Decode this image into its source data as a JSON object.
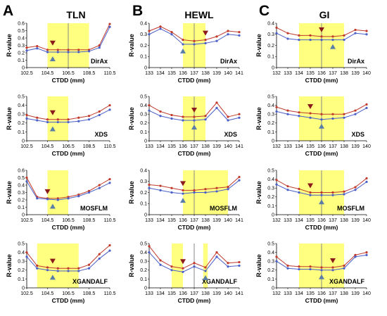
{
  "panel_letters": [
    "A",
    "B",
    "C"
  ],
  "column_titles": [
    "TLN",
    "HEWL",
    "GI"
  ],
  "chart_data": [
    {
      "type": "line",
      "column": "TLN",
      "program": "DirAx",
      "x": [
        102.5,
        103.5,
        104.5,
        105.5,
        106.5,
        107.5,
        108.5,
        109.5,
        110.5
      ],
      "xticks": [
        "102.5",
        "104.5",
        "106.5",
        "108.5",
        "110.5"
      ],
      "xlim": [
        102.5,
        110.5
      ],
      "ylim": [
        0,
        0.6
      ],
      "yticks": [
        "0",
        "0.1",
        "0.2",
        "0.3",
        "0.4",
        "0.5",
        "0.6"
      ],
      "xlabel": "CTDD (mm)",
      "ylabel": "R-value",
      "shade": [
        [
          104.5,
          108.5
        ]
      ],
      "vline": 106.5,
      "down_marker": 105,
      "up_marker": 105,
      "series": [
        {
          "values": [
            0.27,
            0.29,
            0.24,
            0.24,
            0.24,
            0.24,
            0.24,
            0.3,
            0.59
          ],
          "color": "#c0392b"
        },
        {
          "values": [
            0.23,
            0.26,
            0.21,
            0.21,
            0.21,
            0.21,
            0.22,
            0.27,
            0.55
          ],
          "color": "#4a5fc8"
        }
      ]
    },
    {
      "type": "line",
      "column": "HEWL",
      "program": "DirAx",
      "x": [
        133,
        134,
        135,
        136,
        137,
        138,
        139,
        140,
        141
      ],
      "xticks": [
        "133",
        "134",
        "135",
        "136",
        "137",
        "138",
        "139",
        "140",
        "141"
      ],
      "xlim": [
        133,
        141
      ],
      "ylim": [
        0,
        0.4
      ],
      "yticks": [
        "0",
        "0.1",
        "0.2",
        "0.3",
        "0.4"
      ],
      "xlabel": "CTDD (mm)",
      "ylabel": "R-value",
      "shade": [
        [
          136,
          138
        ]
      ],
      "vline": 137,
      "down_marker": 138,
      "up_marker": 136,
      "series": [
        {
          "values": [
            0.33,
            0.37,
            0.32,
            0.25,
            0.24,
            0.25,
            0.28,
            0.33,
            0.32
          ],
          "color": "#c0392b"
        },
        {
          "values": [
            0.3,
            0.35,
            0.3,
            0.21,
            0.21,
            0.22,
            0.24,
            0.3,
            0.29
          ],
          "color": "#4a5fc8"
        }
      ]
    },
    {
      "type": "line",
      "column": "GI",
      "program": "DirAx",
      "x": [
        132,
        133,
        134,
        135,
        136,
        137,
        138,
        139,
        140
      ],
      "xticks": [
        "132",
        "133",
        "134",
        "135",
        "136",
        "137",
        "138",
        "139",
        "140"
      ],
      "xlim": [
        132,
        140
      ],
      "ylim": [
        0,
        0.4
      ],
      "yticks": [
        "0",
        "0.1",
        "0.2",
        "0.3",
        "0.4"
      ],
      "xlabel": "CTDD (mm)",
      "ylabel": "R-value",
      "shade": [
        [
          134,
          138
        ]
      ],
      "vline": 136,
      "down_marker": 136,
      "up_marker": 137,
      "series": [
        {
          "values": [
            0.36,
            0.31,
            0.29,
            0.29,
            0.28,
            0.28,
            0.29,
            0.34,
            0.33
          ],
          "color": "#c0392b"
        },
        {
          "values": [
            0.31,
            0.26,
            0.25,
            0.25,
            0.25,
            0.25,
            0.25,
            0.31,
            0.3
          ],
          "color": "#4a5fc8"
        }
      ]
    },
    {
      "type": "line",
      "column": "TLN",
      "program": "XDS",
      "x": [
        102.5,
        103.5,
        104.5,
        105.5,
        106.5,
        107.5,
        108.5,
        109.5,
        110.5
      ],
      "xticks": [
        "102.5",
        "104.5",
        "106.5",
        "108.5",
        "110.5"
      ],
      "xlim": [
        102.5,
        110.5
      ],
      "ylim": [
        0,
        0.5
      ],
      "yticks": [
        "0",
        "0.1",
        "0.2",
        "0.3",
        "0.4",
        "0.5"
      ],
      "xlabel": "CTDD (mm)",
      "ylabel": "R-value",
      "shade": [
        [
          104.5,
          106.5
        ]
      ],
      "vline": null,
      "down_marker": 105,
      "up_marker": 105,
      "series": [
        {
          "values": [
            0.29,
            0.26,
            0.24,
            0.24,
            0.24,
            0.26,
            0.28,
            0.33,
            0.4
          ],
          "color": "#c0392b"
        },
        {
          "values": [
            0.25,
            0.23,
            0.21,
            0.21,
            0.21,
            0.22,
            0.24,
            0.29,
            0.35
          ],
          "color": "#4a5fc8"
        }
      ]
    },
    {
      "type": "line",
      "column": "HEWL",
      "program": "XDS",
      "x": [
        133,
        134,
        135,
        136,
        137,
        138,
        139,
        140,
        141
      ],
      "xticks": [
        "133",
        "134",
        "135",
        "136",
        "137",
        "138",
        "139",
        "140",
        "141"
      ],
      "xlim": [
        133,
        141
      ],
      "ylim": [
        0,
        0.5
      ],
      "yticks": [
        "0",
        "0.1",
        "0.2",
        "0.3",
        "0.4",
        "0.5"
      ],
      "xlabel": "CTDD (mm)",
      "ylabel": "R-value",
      "shade": [
        [
          136,
          138
        ]
      ],
      "vline": 137,
      "down_marker": 137,
      "up_marker": 137,
      "series": [
        {
          "values": [
            0.4,
            0.33,
            0.29,
            0.27,
            0.27,
            0.28,
            0.43,
            0.27,
            0.3
          ],
          "color": "#c0392b"
        },
        {
          "values": [
            0.34,
            0.28,
            0.25,
            0.23,
            0.23,
            0.24,
            0.37,
            0.23,
            0.26
          ],
          "color": "#4a5fc8"
        }
      ]
    },
    {
      "type": "line",
      "column": "GI",
      "program": "XDS",
      "x": [
        132,
        133,
        134,
        135,
        136,
        137,
        138,
        139,
        140
      ],
      "xticks": [
        "132",
        "133",
        "134",
        "135",
        "136",
        "137",
        "138",
        "139",
        "140"
      ],
      "xlim": [
        132,
        140
      ],
      "ylim": [
        0,
        0.5
      ],
      "yticks": [
        "0",
        "0.1",
        "0.2",
        "0.3",
        "0.4",
        "0.5"
      ],
      "xlabel": "CTDD (mm)",
      "ylabel": "R-value",
      "shade": [
        [
          134,
          138
        ]
      ],
      "vline": 136,
      "down_marker": 135,
      "up_marker": 136,
      "series": [
        {
          "values": [
            0.38,
            0.34,
            0.32,
            0.31,
            0.3,
            0.3,
            0.3,
            0.34,
            0.41
          ],
          "color": "#c0392b"
        },
        {
          "values": [
            0.33,
            0.3,
            0.28,
            0.26,
            0.24,
            0.25,
            0.26,
            0.3,
            0.37
          ],
          "color": "#4a5fc8"
        }
      ]
    },
    {
      "type": "line",
      "column": "TLN",
      "program": "MOSFLM",
      "x": [
        102.5,
        103.5,
        104.5,
        105.5,
        106.5,
        107.5,
        108.5,
        109.5,
        110.5
      ],
      "xticks": [
        "102.5",
        "104.5",
        "106.5",
        "108.5",
        "110.5"
      ],
      "xlim": [
        102.5,
        110.5
      ],
      "ylim": [
        0,
        0.6
      ],
      "yticks": [
        "0",
        "0.1",
        "0.2",
        "0.3",
        "0.4",
        "0.5",
        "0.6"
      ],
      "xlabel": "CTDD (mm)",
      "ylabel": "R-value",
      "shade": [
        [
          104.5,
          106.5
        ]
      ],
      "vline": null,
      "down_marker": 104.5,
      "up_marker": 105,
      "series": [
        {
          "values": [
            0.5,
            0.24,
            0.22,
            0.22,
            0.24,
            0.27,
            0.32,
            0.4,
            0.48
          ],
          "color": "#c0392b"
        },
        {
          "values": [
            0.45,
            0.22,
            0.21,
            0.2,
            0.22,
            0.25,
            0.3,
            0.36,
            0.43
          ],
          "color": "#4a5fc8"
        }
      ]
    },
    {
      "type": "line",
      "column": "HEWL",
      "program": "MOSFLM",
      "x": [
        133,
        134,
        135,
        136,
        137,
        138,
        139,
        140,
        141
      ],
      "xticks": [
        "133",
        "134",
        "135",
        "136",
        "137",
        "138",
        "139",
        "140",
        "141"
      ],
      "xlim": [
        133,
        141
      ],
      "ylim": [
        0,
        0.4
      ],
      "yticks": [
        "0",
        "0.1",
        "0.2",
        "0.3",
        "0.4"
      ],
      "xlabel": "CTDD (mm)",
      "ylabel": "R-value",
      "shade": [
        [
          136,
          140
        ]
      ],
      "vline": 137,
      "down_marker": 136,
      "up_marker": 136,
      "series": [
        {
          "values": [
            0.27,
            0.26,
            0.24,
            0.22,
            0.22,
            0.23,
            0.24,
            0.25,
            0.34
          ],
          "color": "#c0392b"
        },
        {
          "values": [
            0.24,
            0.22,
            0.2,
            0.19,
            0.2,
            0.2,
            0.21,
            0.23,
            0.31
          ],
          "color": "#4a5fc8"
        }
      ]
    },
    {
      "type": "line",
      "column": "GI",
      "program": "MOSFLM",
      "x": [
        132,
        133,
        134,
        135,
        136,
        137,
        138,
        139,
        140
      ],
      "xticks": [
        "132",
        "133",
        "134",
        "135",
        "136",
        "137",
        "138",
        "139",
        "140"
      ],
      "xlim": [
        132,
        140
      ],
      "ylim": [
        0,
        0.5
      ],
      "yticks": [
        "0",
        "0.1",
        "0.2",
        "0.3",
        "0.4",
        "0.5"
      ],
      "xlabel": "CTDD (mm)",
      "ylabel": "R-value",
      "shade": [
        [
          134,
          138
        ]
      ],
      "vline": 136,
      "down_marker": 135,
      "up_marker": 136,
      "series": [
        {
          "values": [
            0.39,
            0.32,
            0.29,
            0.25,
            0.25,
            0.25,
            0.26,
            0.31,
            0.41
          ],
          "color": "#c0392b"
        },
        {
          "values": [
            0.34,
            0.28,
            0.25,
            0.22,
            0.22,
            0.22,
            0.23,
            0.28,
            0.37
          ],
          "color": "#4a5fc8"
        }
      ]
    },
    {
      "type": "line",
      "column": "TLN",
      "program": "XGANDALF",
      "x": [
        102.5,
        103.5,
        104.5,
        105.5,
        106.5,
        107.5,
        108.5,
        109.5,
        110.5
      ],
      "xticks": [
        "102.5",
        "104.5",
        "106.5",
        "108.5",
        "110.5"
      ],
      "xlim": [
        102.5,
        110.5
      ],
      "ylim": [
        0,
        0.5
      ],
      "yticks": [
        "0",
        "0.1",
        "0.2",
        "0.3",
        "0.4",
        "0.5"
      ],
      "xlabel": "CTDD (mm)",
      "ylabel": "R-value",
      "shade": [
        [
          103.5,
          107.5
        ]
      ],
      "vline": null,
      "down_marker": 105,
      "up_marker": 105,
      "series": [
        {
          "values": [
            0.4,
            0.25,
            0.23,
            0.22,
            0.22,
            0.22,
            0.26,
            0.38,
            0.48
          ],
          "color": "#c0392b"
        },
        {
          "values": [
            0.35,
            0.22,
            0.2,
            0.19,
            0.19,
            0.19,
            0.22,
            0.33,
            0.42
          ],
          "color": "#4a5fc8"
        }
      ]
    },
    {
      "type": "line",
      "column": "HEWL",
      "program": "XGANDALF",
      "x": [
        133,
        134,
        135,
        136,
        137,
        138,
        139,
        140,
        141
      ],
      "xticks": [
        "133",
        "134",
        "135",
        "136",
        "137",
        "138",
        "139",
        "140",
        "141"
      ],
      "xlim": [
        133,
        141
      ],
      "ylim": [
        0,
        0.5
      ],
      "yticks": [
        "0",
        "0.1",
        "0.2",
        "0.3",
        "0.4",
        "0.5"
      ],
      "xlabel": "CTDD (mm)",
      "ylabel": "R-value",
      "shade": [
        [
          135,
          136
        ],
        [
          137.8,
          138.2
        ]
      ],
      "vline": 137,
      "down_marker": 136,
      "up_marker": 138,
      "series": [
        {
          "values": [
            0.47,
            0.31,
            0.24,
            0.22,
            0.28,
            0.23,
            0.4,
            0.28,
            0.29
          ],
          "color": "#c0392b"
        },
        {
          "values": [
            0.4,
            0.26,
            0.2,
            0.18,
            0.24,
            0.19,
            0.35,
            0.24,
            0.25
          ],
          "color": "#4a5fc8"
        }
      ]
    },
    {
      "type": "line",
      "column": "GI",
      "program": "XGANDALF",
      "x": [
        132,
        133,
        134,
        135,
        136,
        137,
        138,
        139,
        140
      ],
      "xticks": [
        "132",
        "133",
        "134",
        "135",
        "136",
        "137",
        "138",
        "139",
        "140"
      ],
      "xlim": [
        132,
        140
      ],
      "ylim": [
        0,
        0.5
      ],
      "yticks": [
        "0",
        "0.1",
        "0.2",
        "0.3",
        "0.4",
        "0.5"
      ],
      "xlabel": "CTDD (mm)",
      "ylabel": "R-value",
      "shade": [
        [
          134,
          138
        ]
      ],
      "vline": 136,
      "down_marker": 137,
      "up_marker": 136,
      "series": [
        {
          "values": [
            0.35,
            0.25,
            0.24,
            0.24,
            0.23,
            0.23,
            0.25,
            0.37,
            0.4
          ],
          "color": "#c0392b"
        },
        {
          "values": [
            0.3,
            0.22,
            0.21,
            0.21,
            0.2,
            0.2,
            0.22,
            0.35,
            0.37
          ],
          "color": "#4a5fc8"
        }
      ]
    }
  ],
  "colors": {
    "shade": "#ffff80",
    "vline": "#888888",
    "down_marker": "#8b1a1a",
    "up_marker": "#5b7ea8"
  }
}
